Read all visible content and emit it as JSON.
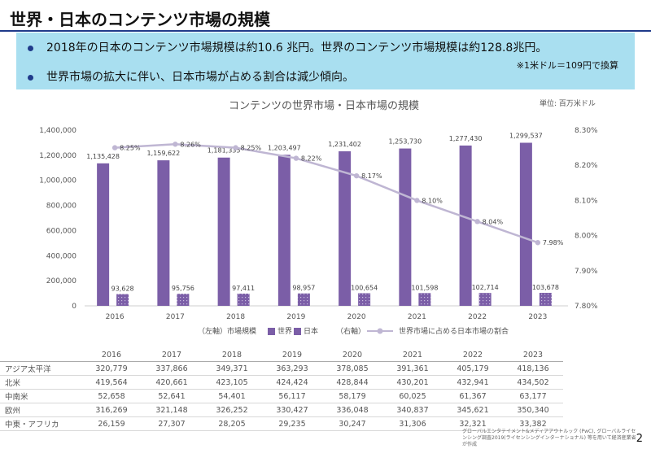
{
  "page": {
    "title": "世界・日本のコンテンツ市場の規模",
    "bullets": [
      "2018年の日本のコンテンツ市場規模は約10.6 兆円。世界のコンテンツ市場規模は約128.8兆円。",
      "世界市場の拡大に伴い、日本市場が占める割合は減少傾向。"
    ],
    "note": "※1米ドル＝109円で換算",
    "unit": "単位: 百万米ドル",
    "source": "グローバルエンタテイメント&メディアアウトルック (PwC), グローバルライセンシング調査2019(ライセンシングインターナショナル) 等を用いて経済産業省が作成",
    "page_number": "2",
    "legend": {
      "left_axis": "（左軸）市場規模",
      "world": "世界",
      "japan": "日本",
      "right_axis": "（右軸）",
      "share": "世界市場に占める日本市場の割合"
    }
  },
  "colors": {
    "world": "#7b5ea7",
    "japan": "#7b5ea7",
    "share": "#bfb6d3",
    "banner": "#a9dff0",
    "title_rule": "#1f3a8a"
  },
  "chart_data": [
    {
      "type": "bar",
      "title": "コンテンツの世界市場・日本市場の規模",
      "categories": [
        "2016",
        "2017",
        "2018",
        "2019",
        "2020",
        "2021",
        "2022",
        "2023"
      ],
      "series": [
        {
          "name": "世界",
          "axis": "left",
          "values": [
            1135428,
            1159622,
            1181335,
            1203497,
            1231402,
            1253730,
            1277430,
            1299537
          ],
          "labels": [
            "1,135,428",
            "1,159,622",
            "1,181,335",
            "1,203,497",
            "1,231,402",
            "1,253,730",
            "1,277,430",
            "1,299,537"
          ]
        },
        {
          "name": "日本",
          "axis": "left",
          "values": [
            93628,
            95756,
            97411,
            98957,
            100654,
            101598,
            102714,
            103678
          ],
          "labels": [
            "93,628",
            "95,756",
            "97,411",
            "98,957",
            "100,654",
            "101,598",
            "102,714",
            "103,678"
          ]
        },
        {
          "name": "世界市場に占める日本市場の割合",
          "type": "line",
          "axis": "right",
          "values": [
            8.25,
            8.26,
            8.25,
            8.22,
            8.17,
            8.1,
            8.04,
            7.98
          ],
          "labels": [
            "8.25%",
            "8.26%",
            "8.25%",
            "8.22%",
            "8.17%",
            "8.10%",
            "8.04%",
            "7.98%"
          ]
        }
      ],
      "ylim": [
        0,
        1400000
      ],
      "yticks": [
        "0",
        "200,000",
        "400,000",
        "600,000",
        "800,000",
        "1,000,000",
        "1,200,000",
        "1,400,000"
      ],
      "y2lim": [
        7.8,
        8.3
      ],
      "y2ticks": [
        "7.80%",
        "7.90%",
        "8.00%",
        "8.10%",
        "8.20%",
        "8.30%"
      ],
      "grid": false,
      "legend_position": "bottom"
    },
    {
      "type": "table",
      "columns": [
        "2016",
        "2017",
        "2018",
        "2019",
        "2020",
        "2021",
        "2022",
        "2023"
      ],
      "rows": [
        {
          "label": "アジア太平洋",
          "values": [
            "320,779",
            "337,866",
            "349,371",
            "363,293",
            "378,085",
            "391,361",
            "405,179",
            "418,136"
          ]
        },
        {
          "label": "北米",
          "values": [
            "419,564",
            "420,661",
            "423,105",
            "424,424",
            "428,844",
            "430,201",
            "432,941",
            "434,502"
          ]
        },
        {
          "label": "中南米",
          "values": [
            "52,658",
            "52,641",
            "54,401",
            "56,117",
            "58,179",
            "60,025",
            "61,367",
            "63,177"
          ]
        },
        {
          "label": "欧州",
          "values": [
            "316,269",
            "321,148",
            "326,252",
            "330,427",
            "336,048",
            "340,837",
            "345,621",
            "350,340"
          ]
        },
        {
          "label": "中東・アフリカ",
          "values": [
            "26,159",
            "27,307",
            "28,205",
            "29,235",
            "30,247",
            "31,306",
            "32,321",
            "33,382"
          ]
        }
      ]
    }
  ]
}
